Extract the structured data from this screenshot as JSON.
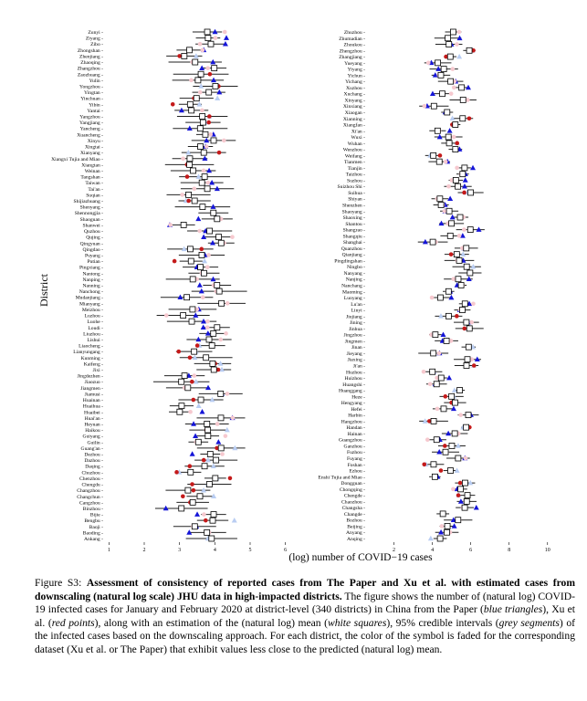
{
  "figure": {
    "y_axis_label": "District",
    "x_axis_label": "(log) number of COVID−19 cases",
    "left_panel": {
      "xlim": [
        0.5,
        6.5
      ],
      "x_ticks": [
        1,
        2,
        3,
        4,
        5,
        6
      ],
      "districts": [
        "Zunyi",
        "Ziyang",
        "Zibo",
        "Zhongshan",
        "Zhenjiang",
        "Zhaoqing",
        "Zhangzhou",
        "Zaozhuang",
        "Yulin",
        "Yongzhou",
        "Yingtan",
        "Yinchuan",
        "Yibin",
        "Yantai",
        "Yangzhou",
        "Yangjiang",
        "Yancheng",
        "Xuancheng",
        "Xinyu",
        "Xingtai",
        "Xianyang",
        "Xiangxi Tujia and Miao",
        "Xiangtan",
        "Weinan",
        "Tangshan",
        "Taiwan",
        "Tai'an",
        "Suqian",
        "Shijiazhuang",
        "Shenyang",
        "Shennongjia",
        "Shaoguan",
        "Shanwei",
        "Quzhou",
        "Qujing",
        "Qingyuan",
        "Qingdao",
        "Puyang",
        "Putian",
        "Pingxiang",
        "Nantong",
        "Nanping",
        "Nanning",
        "Nanchong",
        "Mudanjiang",
        "Mianyang",
        "Meizhou",
        "Luzhou",
        "Luohe",
        "Loudi",
        "Liuzhou",
        "Lishui",
        "Liaocheng",
        "Lianyungang",
        "Kunming",
        "Kaifeng",
        "Jixi",
        "Jingdezhen",
        "Jiaozuo",
        "Jiangmen",
        "Jiamusi",
        "Huainan",
        "Huaihua",
        "Huaibei",
        "Huai'an",
        "Heyuan",
        "Haikou",
        "Guiyang",
        "Guilin",
        "Guang'an",
        "Dezhou",
        "Dazhou",
        "Daqing",
        "Chuzhou",
        "Chenzhou",
        "Chengdu",
        "Changzhou",
        "Changchun",
        "Cangzhou",
        "Binzhou",
        "Bijie",
        "Bengbu",
        "Baoji",
        "Baoding",
        "Ankang"
      ]
    },
    "right_panel": {
      "xlim": [
        0.5,
        11.2
      ],
      "x_ticks": [
        2,
        4,
        6,
        8,
        10
      ],
      "districts": [
        "Zhuzhou",
        "Zhumadian",
        "Zhoukou",
        "Zhengzhou",
        "Zhangjiang",
        "Yueyang",
        "Yiyang",
        "Yichun",
        "Yichang",
        "Xuzhou",
        "Xuchang",
        "Xinyang",
        "Xinxiang",
        "Xiaogan",
        "Xianning",
        "Xiangfan",
        "Xi'an",
        "Wuxi",
        "Wuhan",
        "Wenzhou",
        "Weifang",
        "Tianmen",
        "Tianjin",
        "Taizhou",
        "Suzhou",
        "Suizhou Shi",
        "Suihua",
        "Shiyan",
        "Shenzhen",
        "Shaoyang",
        "Shaoxing",
        "Shantou",
        "Shangrao",
        "Shangqiu",
        "Shanghai",
        "Quanzhou",
        "Qianjiang",
        "Pingdingshan",
        "Ningbo",
        "Nanyang",
        "Nanjing",
        "Nanchang",
        "Maoming",
        "Luoyang",
        "Lu'an",
        "Linyi",
        "Jiujiang",
        "Jining",
        "Jinhua",
        "Jingzhou",
        "Jingmen",
        "Jinan",
        "Jieyang",
        "Jiaxing",
        "Ji'an",
        "Huzhou",
        "Huizhou",
        "Huangshi",
        "Huanggang",
        "Heze",
        "Hengyang",
        "Hefei",
        "Harbin",
        "Hangzhou",
        "Handan",
        "Hainan",
        "Guangzhou",
        "Ganzhou",
        "Fuzhou",
        "Fuyang",
        "Foshan",
        "Ezhou",
        "Enshi Tujia and Miao",
        "Dongguan",
        "Chongqing",
        "Chengde",
        "Chaozhou",
        "Changsha",
        "Changde",
        "Bozhou",
        "Beijing",
        "Anyang",
        "Anqing"
      ]
    }
  },
  "caption": {
    "fig_label": "Figure S3:",
    "bold_title": "Assessment of consistency of reported cases from The Paper and Xu et al. with estimated cases from downscaling (natural log scale) JHU data in high-impacted districts.",
    "s1": "The figure shows the number of (natural log) COVID-19 infected cases for January and February 2020 at district-level (340 districts) in China from the Paper (",
    "blue_label": "blue triangles",
    "s2": "), Xu et al. (",
    "red_label": "red points",
    "s3": "), along with an estimation of the (natural log) mean (",
    "white_label": "white squares",
    "s4": "), 95% credible intervals (",
    "grey_label": "grey segments",
    "s5": ") of the infected cases based on the downscaling approach. For each district, the color of the symbol is faded for the corresponding dataset (Xu et al. or The Paper) that exhibit values less close to the predicted (natural log) mean."
  },
  "colors": {
    "paper_triangle": "#1515d8",
    "paper_triangle_faded": "#b9cdf2",
    "xu_point": "#c41a1a",
    "xu_point_faded": "#f6c9cf",
    "interval": "#222222",
    "mean_square_fill": "#ffffff"
  }
}
